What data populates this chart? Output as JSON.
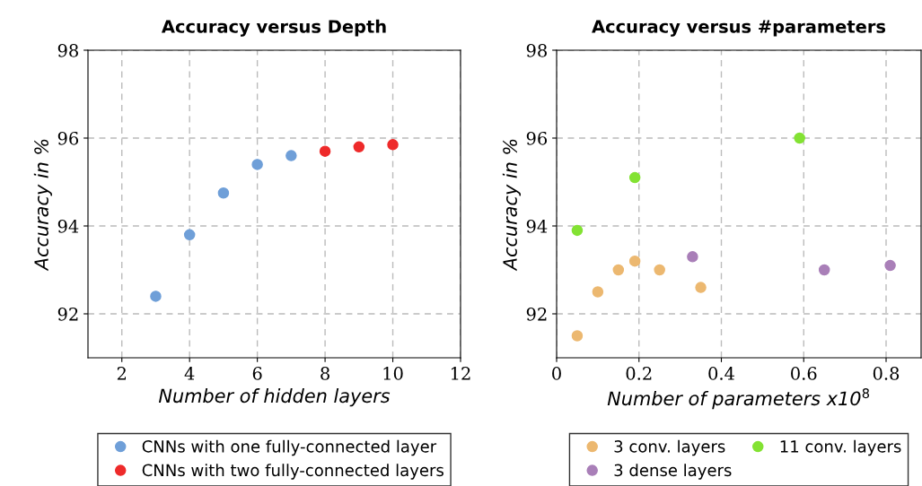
{
  "chart_data": [
    {
      "type": "scatter",
      "title": "Accuracy versus Depth",
      "xlabel": "Number of hidden layers",
      "ylabel": "Accuracy in %",
      "xlim": [
        1,
        12
      ],
      "xticks": [
        2,
        4,
        6,
        8,
        10,
        12
      ],
      "ylim": [
        91,
        98
      ],
      "yticks": [
        92,
        94,
        96,
        98
      ],
      "grid": true,
      "legend": "bottom",
      "marker": "circle",
      "series": [
        {
          "name": "CNNs with one fully-connected layer",
          "color": "#6f9fd8",
          "x": [
            3,
            4,
            5,
            6,
            7
          ],
          "values": [
            92.4,
            93.8,
            94.75,
            95.4,
            95.6
          ]
        },
        {
          "name": "CNNs with two fully-connected layers",
          "color": "#ee2a2a",
          "x": [
            8,
            9,
            10
          ],
          "values": [
            95.7,
            95.8,
            95.85
          ]
        }
      ]
    },
    {
      "type": "scatter",
      "title": "Accuracy versus #parameters",
      "xlabel": "Number of parameters x10$^{8}$",
      "ylabel": "Accuracy in %",
      "xlim": [
        0,
        0.885
      ],
      "xticks": [
        0,
        0.2,
        0.4,
        0.6,
        0.8
      ],
      "ylim": [
        91,
        98
      ],
      "yticks": [
        92,
        94,
        96,
        98
      ],
      "grid": true,
      "legend": "bottom",
      "marker": "circle",
      "series": [
        {
          "name": "3 conv. layers",
          "color": "#ecb870",
          "x": [
            0.05,
            0.1,
            0.15,
            0.19,
            0.25,
            0.35
          ],
          "values": [
            91.5,
            92.5,
            93,
            93.2,
            93,
            92.6
          ]
        },
        {
          "name": "3 dense layers",
          "color": "#a97fb8",
          "x": [
            0.33,
            0.65,
            0.81
          ],
          "values": [
            93.3,
            93,
            93.1
          ]
        },
        {
          "name": "11 conv. layers",
          "color": "#83e233",
          "x": [
            0.05,
            0.19,
            0.59
          ],
          "values": [
            93.9,
            95.1,
            96
          ]
        }
      ]
    }
  ]
}
